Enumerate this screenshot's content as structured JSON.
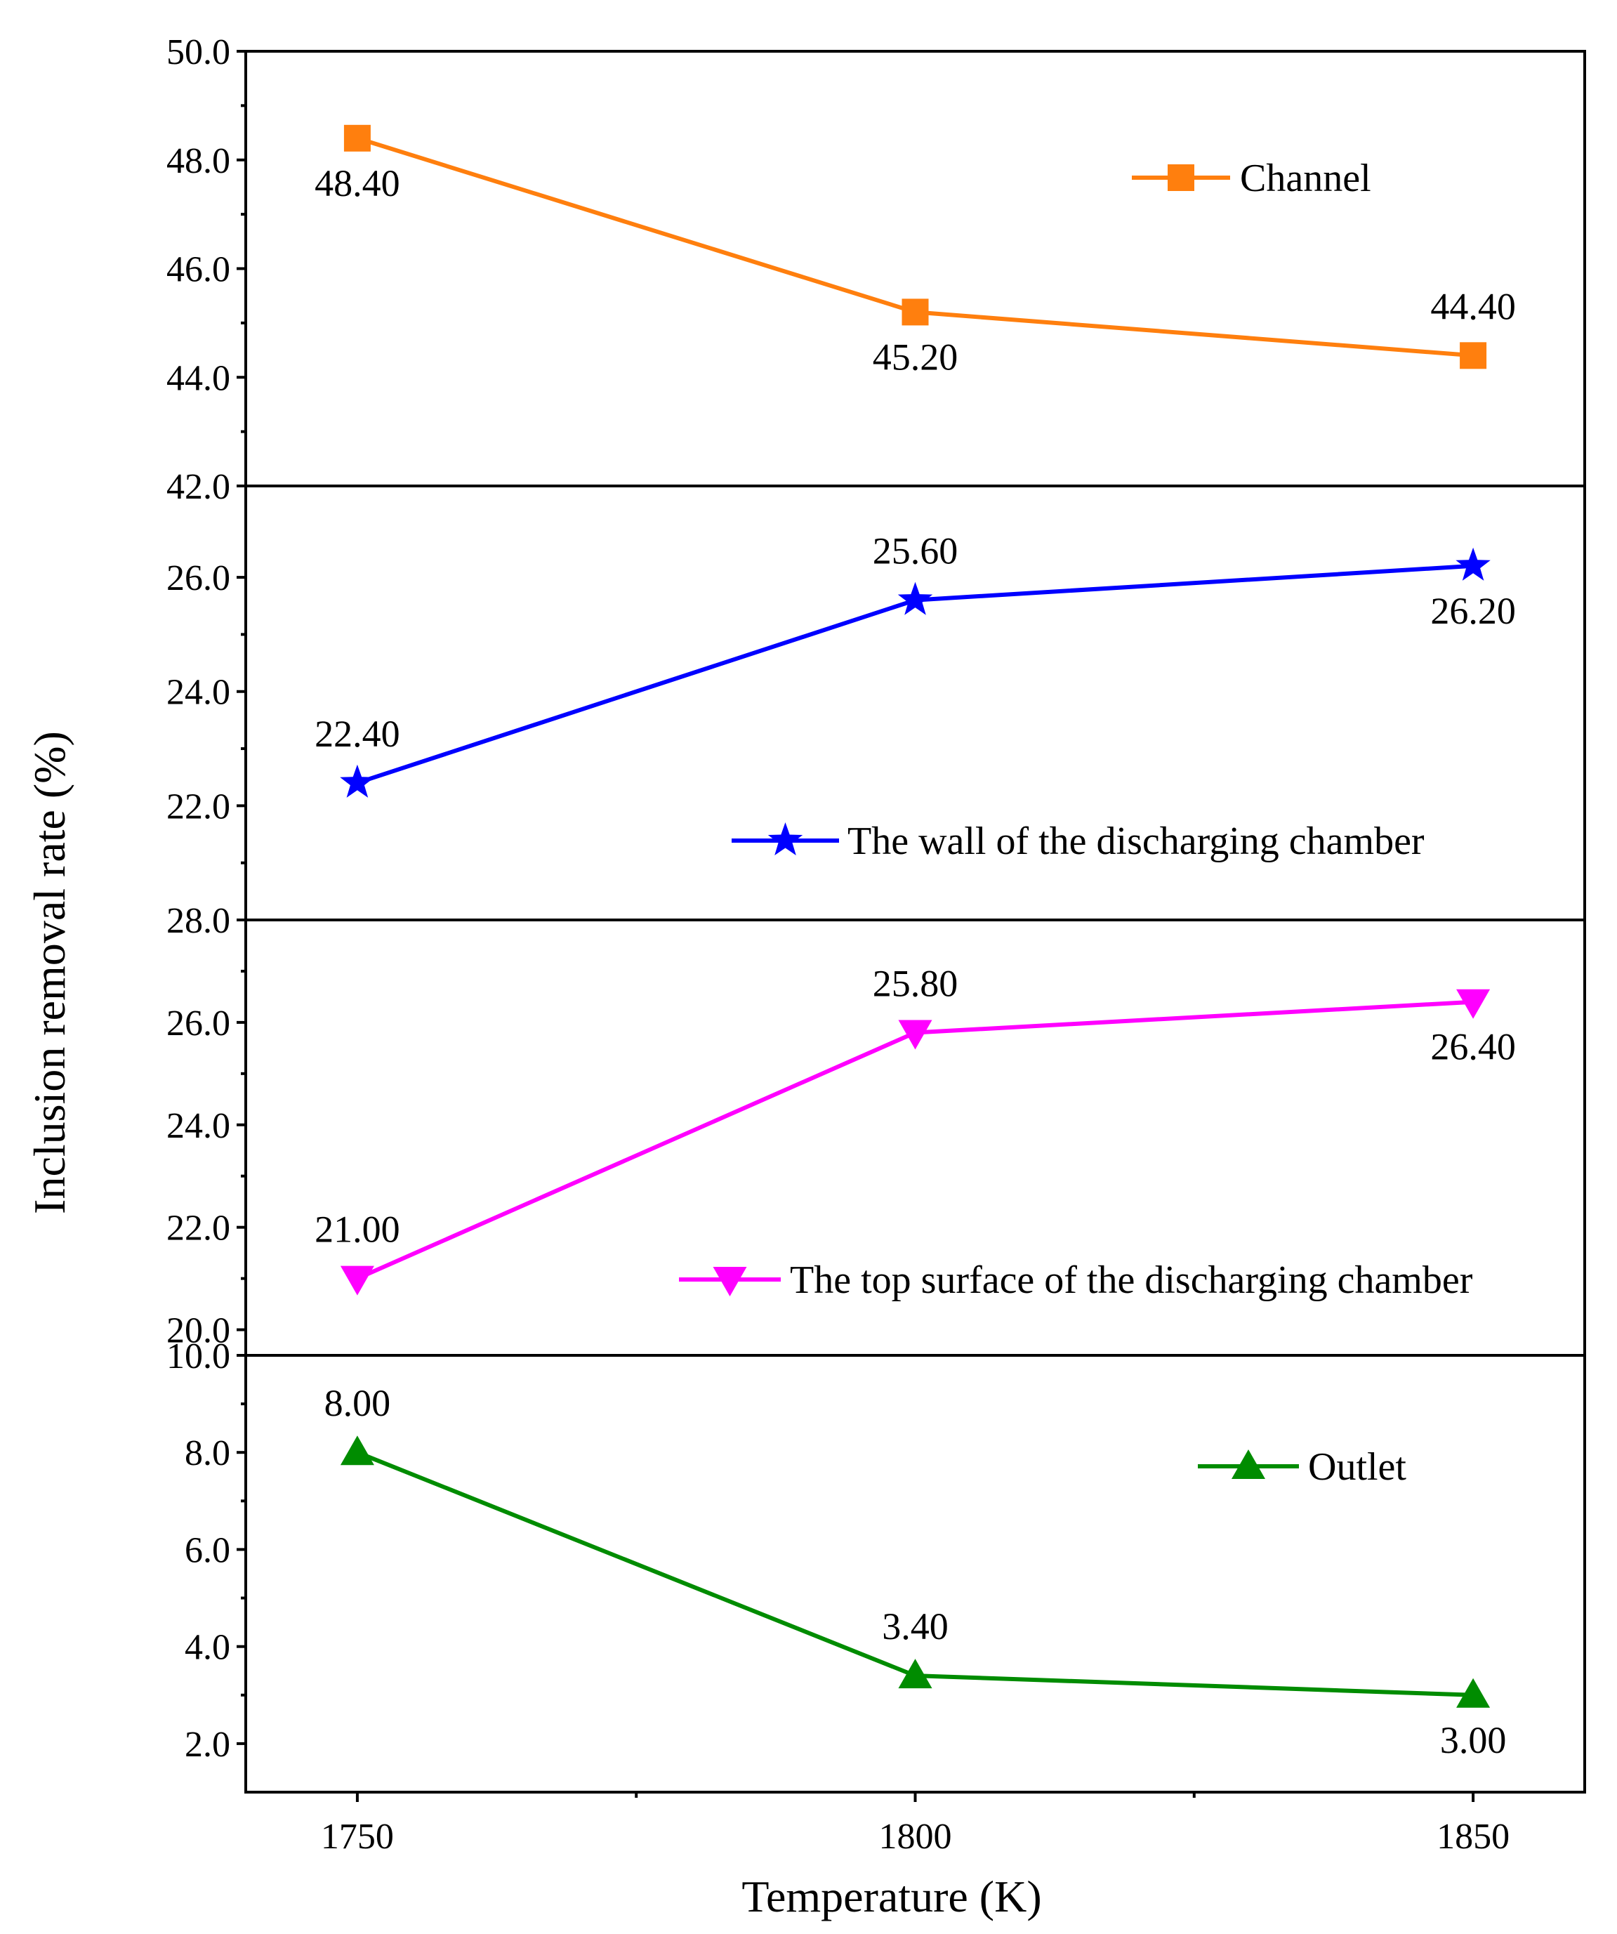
{
  "chart_data": {
    "type": "line",
    "xlabel": "Temperature (K)",
    "ylabel": "Inclusion removal rate (%)",
    "x": [
      1750,
      1800,
      1850
    ],
    "x_tick_labels": [
      "1750",
      "1800",
      "1850"
    ],
    "x_range": [
      1740,
      1860
    ],
    "panels": [
      {
        "id": "channel",
        "legend": "Channel",
        "legend_position": "top-right",
        "color": "#ff7f0e",
        "marker": "square",
        "ylim": [
          42,
          50
        ],
        "y_ticks": [
          42,
          44,
          46,
          48,
          50
        ],
        "y_tick_labels": [
          "42.0",
          "44.0",
          "46.0",
          "48.0",
          "50.0"
        ],
        "values": [
          48.4,
          45.2,
          44.4
        ],
        "value_labels": [
          "48.40",
          "45.20",
          "44.40"
        ],
        "label_placement": [
          "below",
          "below",
          "above"
        ]
      },
      {
        "id": "wall",
        "legend": "The wall of the discharging chamber",
        "legend_position": "bottom-right",
        "color": "#0000ff",
        "marker": "star",
        "ylim": [
          20,
          27.6
        ],
        "y_ticks": [
          22,
          24,
          26
        ],
        "y_tick_labels": [
          "22.0",
          "24.0",
          "26.0"
        ],
        "values": [
          22.4,
          25.6,
          26.2
        ],
        "value_labels": [
          "22.40",
          "25.60",
          "26.20"
        ],
        "label_placement": [
          "above",
          "above",
          "below"
        ]
      },
      {
        "id": "top-surface",
        "legend": "The top surface of the discharging chamber",
        "legend_position": "bottom-right",
        "color": "#ff00ff",
        "marker": "triangle-down",
        "ylim": [
          19.5,
          28
        ],
        "y_ticks": [
          20,
          22,
          24,
          26,
          28
        ],
        "y_tick_labels": [
          "20.0",
          "22.0",
          "24.0",
          "26.0",
          "28.0"
        ],
        "values": [
          21.0,
          25.8,
          26.4
        ],
        "value_labels": [
          "21.00",
          "25.80",
          "26.40"
        ],
        "label_placement": [
          "above",
          "above",
          "below"
        ]
      },
      {
        "id": "outlet",
        "legend": "Outlet",
        "legend_position": "top-right",
        "color": "#008c00",
        "marker": "triangle-up",
        "ylim": [
          1.0,
          10.0
        ],
        "y_ticks": [
          2,
          4,
          6,
          8,
          10
        ],
        "y_tick_labels": [
          "2.0",
          "4.0",
          "6.0",
          "8.0",
          "10.0"
        ],
        "values": [
          8.0,
          3.4,
          3.0
        ],
        "value_labels": [
          "8.00",
          "3.40",
          "3.00"
        ],
        "label_placement": [
          "above",
          "above",
          "below"
        ]
      }
    ]
  }
}
